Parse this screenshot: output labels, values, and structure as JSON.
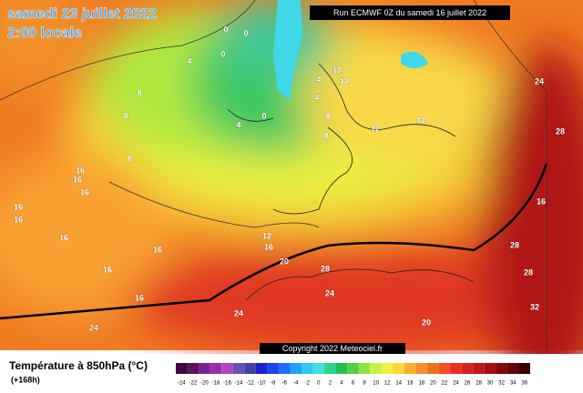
{
  "header": {
    "date": "samedi 23 juillet 2022",
    "time": "2:00 locale",
    "run": "Run ECMWF 0Z du samedi 16 juillet 2022"
  },
  "map": {
    "contour_labels": [
      0,
      0,
      0,
      4,
      0,
      4,
      4,
      4,
      12,
      12,
      8,
      8,
      12,
      12,
      8,
      8,
      8,
      16,
      16,
      16,
      16,
      16,
      16,
      16,
      16,
      16,
      24,
      24,
      12,
      16,
      20,
      24,
      28,
      20,
      28,
      28,
      32,
      16,
      24,
      28
    ],
    "copyright": "Copyright 2022 Meteociel.fr"
  },
  "legend": {
    "title": "Température à 850hPa (°C)",
    "lead": "(+168h)",
    "scale": [
      {
        "label": -24,
        "color": "#3a0a3a"
      },
      {
        "label": -22,
        "color": "#5a1460"
      },
      {
        "label": -20,
        "color": "#78208a"
      },
      {
        "label": -18,
        "color": "#9a30a8"
      },
      {
        "label": -16,
        "color": "#b048c0"
      },
      {
        "label": -14,
        "color": "#6a50b8"
      },
      {
        "label": -12,
        "color": "#4040a8"
      },
      {
        "label": -10,
        "color": "#2020c8"
      },
      {
        "label": -8,
        "color": "#2040f0"
      },
      {
        "label": -6,
        "color": "#2070ff"
      },
      {
        "label": -4,
        "color": "#20a0ff"
      },
      {
        "label": -2,
        "color": "#30c8f0"
      },
      {
        "label": 0,
        "color": "#40e0e0"
      },
      {
        "label": 2,
        "color": "#30d090"
      },
      {
        "label": 4,
        "color": "#20c050"
      },
      {
        "label": 6,
        "color": "#50d040"
      },
      {
        "label": 8,
        "color": "#90e040"
      },
      {
        "label": 10,
        "color": "#c8f040"
      },
      {
        "label": 12,
        "color": "#f0f040"
      },
      {
        "label": 14,
        "color": "#f8d838"
      },
      {
        "label": 16,
        "color": "#f8b030"
      },
      {
        "label": 18,
        "color": "#f89028"
      },
      {
        "label": 20,
        "color": "#f07020"
      },
      {
        "label": 22,
        "color": "#f05020"
      },
      {
        "label": 24,
        "color": "#e83020"
      },
      {
        "label": 26,
        "color": "#d82020"
      },
      {
        "label": 28,
        "color": "#c01818"
      },
      {
        "label": 30,
        "color": "#a01010"
      },
      {
        "label": 32,
        "color": "#800808"
      },
      {
        "label": 34,
        "color": "#600404"
      },
      {
        "label": 36,
        "color": "#380000"
      }
    ]
  }
}
